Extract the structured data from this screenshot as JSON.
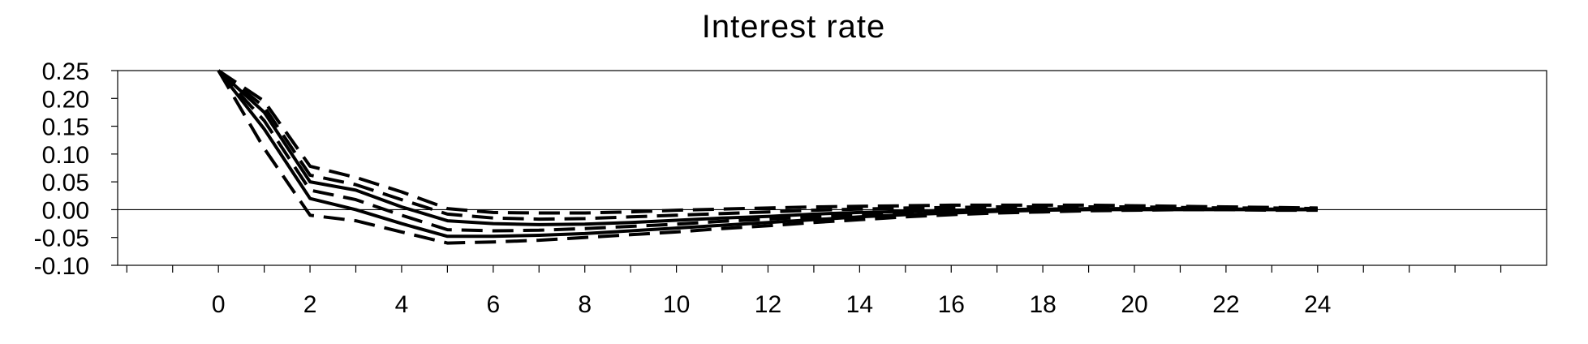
{
  "chart_data": {
    "type": "line",
    "title": "Interest rate",
    "xlabel": "",
    "ylabel": "",
    "xlim": [
      -2.2,
      29.0
    ],
    "ylim": [
      -0.1,
      0.25
    ],
    "x_ticks": [
      0,
      2,
      4,
      6,
      8,
      10,
      12,
      14,
      16,
      18,
      20,
      22,
      24
    ],
    "y_ticks": [
      0.25,
      0.2,
      0.15,
      0.1,
      0.05,
      0.0,
      -0.05,
      -0.1
    ],
    "y_tick_labels": [
      "0.25",
      "0.20",
      "0.15",
      "0.10",
      "0.05",
      "0.00",
      "-0.05",
      "-0.10"
    ],
    "zero_line": true,
    "grid": false,
    "line_color": "#000000",
    "x": [
      0,
      1,
      2,
      3,
      4,
      5,
      6,
      7,
      8,
      9,
      10,
      11,
      12,
      13,
      14,
      15,
      16,
      17,
      18,
      19,
      20,
      21,
      22,
      23,
      24
    ],
    "series": [
      {
        "style": "solid",
        "values": [
          0.25,
          0.175,
          0.05,
          0.035,
          0.005,
          -0.02,
          -0.025,
          -0.027,
          -0.026,
          -0.023,
          -0.019,
          -0.015,
          -0.012,
          -0.008,
          -0.005,
          -0.003,
          -0.001,
          0.0,
          0.001,
          0.002,
          0.002,
          0.002,
          0.001,
          0.001,
          0.001
        ]
      },
      {
        "style": "solid",
        "values": [
          0.25,
          0.145,
          0.02,
          0.0,
          -0.025,
          -0.048,
          -0.048,
          -0.046,
          -0.043,
          -0.038,
          -0.033,
          -0.028,
          -0.023,
          -0.018,
          -0.013,
          -0.009,
          -0.006,
          -0.003,
          -0.001,
          0.0,
          0.0,
          0.0,
          0.0,
          0.0,
          0.0
        ]
      },
      {
        "style": "dashed",
        "values": [
          0.25,
          0.195,
          0.078,
          0.058,
          0.032,
          0.002,
          -0.005,
          -0.006,
          -0.006,
          -0.004,
          -0.001,
          0.001,
          0.003,
          0.005,
          0.006,
          0.007,
          0.008,
          0.008,
          0.008,
          0.008,
          0.007,
          0.006,
          0.005,
          0.004,
          0.003
        ]
      },
      {
        "style": "dashed",
        "values": [
          0.25,
          0.185,
          0.062,
          0.045,
          0.018,
          -0.008,
          -0.015,
          -0.017,
          -0.016,
          -0.013,
          -0.01,
          -0.007,
          -0.004,
          -0.001,
          0.001,
          0.003,
          0.004,
          0.005,
          0.005,
          0.005,
          0.005,
          0.004,
          0.003,
          0.003,
          0.002
        ]
      },
      {
        "style": "dashed",
        "values": [
          0.25,
          0.16,
          0.035,
          0.018,
          -0.01,
          -0.036,
          -0.038,
          -0.037,
          -0.034,
          -0.03,
          -0.026,
          -0.021,
          -0.017,
          -0.013,
          -0.009,
          -0.006,
          -0.003,
          -0.001,
          0.0,
          0.001,
          0.001,
          0.001,
          0.001,
          0.0,
          0.0
        ]
      },
      {
        "style": "dashed",
        "values": [
          0.25,
          0.11,
          -0.01,
          -0.02,
          -0.04,
          -0.06,
          -0.058,
          -0.055,
          -0.05,
          -0.045,
          -0.04,
          -0.034,
          -0.029,
          -0.023,
          -0.018,
          -0.013,
          -0.009,
          -0.006,
          -0.004,
          -0.002,
          -0.001,
          0.0,
          0.0,
          -0.001,
          -0.001
        ]
      }
    ]
  }
}
